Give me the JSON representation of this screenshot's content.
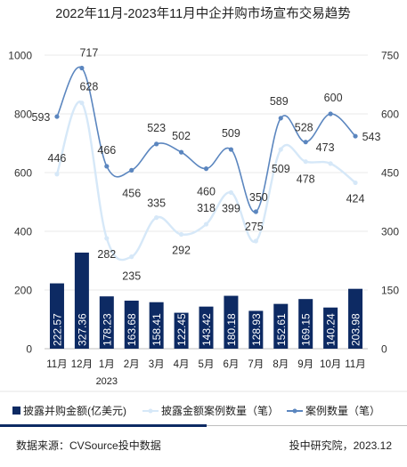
{
  "chart_data": {
    "type": "bar+line",
    "title": "2022年11月-2023年11月中企并购市场宣布交易趋势",
    "categories": [
      "11月",
      "12月",
      "1月",
      "2月",
      "3月",
      "4月",
      "5月",
      "6月",
      "7月",
      "8月",
      "9月",
      "10月",
      "11月"
    ],
    "year_marker": {
      "category_index": 2,
      "text": "2023"
    },
    "left_axis": {
      "ylim": [
        0,
        1000
      ],
      "ticks": [
        0,
        200,
        400,
        600,
        800,
        1000
      ]
    },
    "right_axis": {
      "ylim": [
        0,
        750
      ],
      "ticks": [
        0,
        150,
        300,
        450,
        600,
        750
      ]
    },
    "series": [
      {
        "name": "披露并购金额(亿美元)",
        "type": "bar",
        "axis": "left",
        "color": "#0d2a63",
        "values": [
          222.57,
          327.36,
          178.23,
          163.68,
          158.41,
          122.45,
          143.42,
          180.18,
          128.93,
          152.61,
          169.15,
          140.24,
          203.98
        ],
        "labels": [
          "222.57",
          "327.36",
          "178.23",
          "163.68",
          "158.41",
          "122.45",
          "143.42",
          "180.18",
          "128.93",
          "152.61",
          "169.15",
          "140.24",
          "203.98"
        ]
      },
      {
        "name": "披露金额案例数量（笔）",
        "type": "line",
        "axis": "right",
        "color": "#d6e8f8",
        "values": [
          446,
          628,
          282,
          235,
          335,
          292,
          318,
          399,
          275,
          509,
          478,
          473,
          424
        ],
        "labels": [
          "446",
          "628",
          "282",
          "235",
          "335",
          "292",
          "318",
          "399",
          "275",
          "509",
          "478",
          "473",
          "424"
        ]
      },
      {
        "name": "案例数量（笔）",
        "type": "line",
        "axis": "right",
        "color": "#5b86bf",
        "values": [
          593,
          717,
          466,
          456,
          523,
          502,
          460,
          509,
          350,
          589,
          528,
          600,
          543
        ],
        "labels": [
          "593",
          "717",
          "466",
          "456",
          "523",
          "502",
          "460",
          "509",
          "350",
          "589",
          "528",
          "600",
          "543"
        ]
      }
    ],
    "legend_position": "bottom"
  },
  "footer": {
    "source": "数据来源：CVSource投中数据",
    "credit": "投中研究院，2023.12"
  }
}
